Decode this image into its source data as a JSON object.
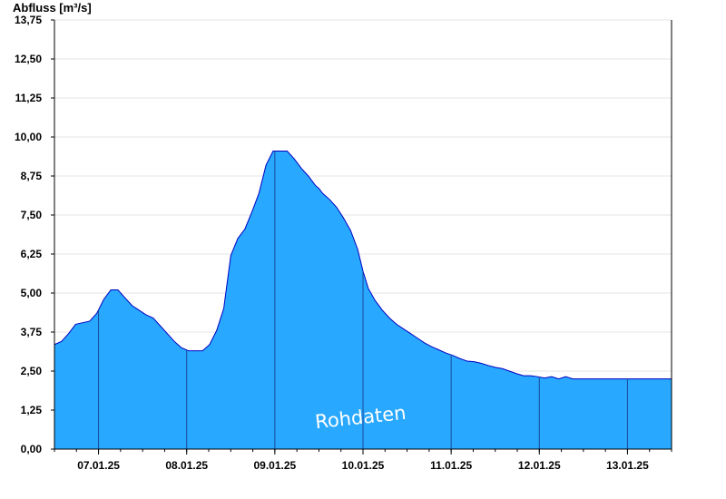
{
  "chart_data": {
    "type": "area",
    "ylabel": "Abfluss [m³/s]",
    "ylim": [
      0,
      13.75
    ],
    "yticks": [
      "0,00",
      "1,25",
      "2,50",
      "3,75",
      "5,00",
      "6,25",
      "7,50",
      "8,75",
      "10,00",
      "11,25",
      "12,50",
      "13,75"
    ],
    "xlim": [
      6.5,
      13.5
    ],
    "xticks": [
      "07.01.25",
      "08.01.25",
      "09.01.25",
      "10.01.25",
      "11.01.25",
      "12.01.25",
      "13.01.25"
    ],
    "grid": true,
    "watermark": "Rohdaten",
    "colors": {
      "fill": "#29a8ff",
      "line": "#0000c0",
      "grid": "#e6e6e6",
      "axis": "#000000",
      "divider": "#1a4a9a"
    },
    "series": [
      {
        "x": [
          6.5,
          6.58,
          6.66,
          6.74,
          6.82,
          6.9,
          6.98,
          7.06,
          7.14,
          7.22,
          7.3,
          7.38,
          7.46,
          7.54,
          7.62,
          7.7,
          7.78,
          7.86,
          7.94,
          8.02,
          8.1,
          8.18,
          8.26,
          8.34,
          8.42,
          8.5,
          8.58,
          8.66,
          8.74,
          8.82,
          8.9,
          8.98,
          9.06,
          9.14,
          9.22,
          9.3,
          9.38,
          9.42,
          9.46,
          9.5,
          9.54,
          9.62,
          9.7,
          9.78,
          9.86,
          9.94,
          10.0,
          10.06,
          10.14,
          10.22,
          10.3,
          10.38,
          10.46,
          10.54,
          10.62,
          10.7,
          10.78,
          10.86,
          10.94,
          11.02,
          11.1,
          11.18,
          11.26,
          11.34,
          11.42,
          11.5,
          11.58,
          11.66,
          11.74,
          11.82,
          11.9,
          11.98,
          12.06,
          12.14,
          12.22,
          12.3,
          12.38,
          12.46,
          12.54,
          12.62,
          12.7,
          12.78,
          12.86,
          12.94,
          13.02,
          13.1,
          13.18,
          13.26,
          13.34,
          13.42,
          13.5
        ],
        "y": [
          3.35,
          3.45,
          3.7,
          4.0,
          4.05,
          4.1,
          4.35,
          4.8,
          5.1,
          5.1,
          4.85,
          4.6,
          4.45,
          4.3,
          4.2,
          3.95,
          3.7,
          3.45,
          3.25,
          3.15,
          3.15,
          3.15,
          3.35,
          3.8,
          4.5,
          6.2,
          6.75,
          7.05,
          7.6,
          8.2,
          9.1,
          9.55,
          9.55,
          9.55,
          9.3,
          9.0,
          8.75,
          8.6,
          8.45,
          8.35,
          8.2,
          8.0,
          7.75,
          7.4,
          7.0,
          6.4,
          5.7,
          5.15,
          4.75,
          4.45,
          4.2,
          4.0,
          3.85,
          3.7,
          3.55,
          3.4,
          3.28,
          3.18,
          3.08,
          3.0,
          2.9,
          2.82,
          2.8,
          2.75,
          2.68,
          2.62,
          2.58,
          2.5,
          2.42,
          2.35,
          2.35,
          2.32,
          2.28,
          2.32,
          2.25,
          2.32,
          2.25,
          2.25,
          2.25,
          2.25,
          2.25,
          2.25,
          2.25,
          2.25,
          2.25,
          2.25,
          2.25,
          2.25,
          2.25,
          2.25,
          2.25
        ]
      }
    ]
  }
}
